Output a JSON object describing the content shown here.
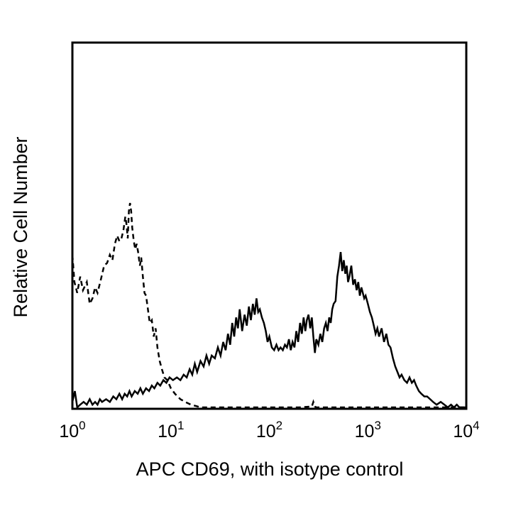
{
  "chart_data": {
    "type": "line",
    "title": "",
    "xlabel": "APC CD69, with isotype control",
    "ylabel": "Relative Cell Number",
    "x_scale": "log",
    "xlim": [
      1,
      10000
    ],
    "ylim": [
      0,
      100
    ],
    "grid": false,
    "legend": "none",
    "x_ticks": [
      {
        "value": 1,
        "base": "10",
        "exp": "0"
      },
      {
        "value": 10,
        "base": "10",
        "exp": "1"
      },
      {
        "value": 100,
        "base": "10",
        "exp": "2"
      },
      {
        "value": 1000,
        "base": "10",
        "exp": "3"
      },
      {
        "value": 10000,
        "base": "10",
        "exp": "4"
      }
    ],
    "series": [
      {
        "style": "dashed",
        "color": "#000000",
        "points": [
          [
            1.0,
            56
          ],
          [
            1.05,
            46
          ],
          [
            1.12,
            42
          ],
          [
            1.2,
            48
          ],
          [
            1.28,
            43
          ],
          [
            1.4,
            46
          ],
          [
            1.5,
            38
          ],
          [
            1.6,
            40
          ],
          [
            1.7,
            44
          ],
          [
            1.8,
            42
          ],
          [
            1.95,
            47
          ],
          [
            2.1,
            52
          ],
          [
            2.25,
            53
          ],
          [
            2.4,
            56
          ],
          [
            2.55,
            54
          ],
          [
            2.7,
            60
          ],
          [
            2.85,
            63
          ],
          [
            3.0,
            61
          ],
          [
            3.15,
            62
          ],
          [
            3.3,
            65
          ],
          [
            3.45,
            70
          ],
          [
            3.55,
            67
          ],
          [
            3.65,
            62
          ],
          [
            3.75,
            72
          ],
          [
            3.85,
            75
          ],
          [
            3.95,
            72
          ],
          [
            4.05,
            66
          ],
          [
            4.2,
            61
          ],
          [
            4.35,
            58
          ],
          [
            4.5,
            60
          ],
          [
            4.65,
            57
          ],
          [
            4.85,
            52
          ],
          [
            5.0,
            55
          ],
          [
            5.2,
            48
          ],
          [
            5.4,
            42
          ],
          [
            5.6,
            41
          ],
          [
            5.8,
            37
          ],
          [
            6.1,
            31
          ],
          [
            6.4,
            32
          ],
          [
            6.7,
            26
          ],
          [
            7.0,
            29
          ],
          [
            7.3,
            22
          ],
          [
            7.7,
            17
          ],
          [
            8.1,
            14
          ],
          [
            8.6,
            11
          ],
          [
            9.2,
            10
          ],
          [
            10.0,
            7
          ],
          [
            11.0,
            5
          ],
          [
            12.5,
            3
          ],
          [
            14.0,
            2
          ],
          [
            16.0,
            1
          ],
          [
            18.0,
            0.5
          ],
          [
            20.0,
            0
          ],
          [
            40.0,
            0
          ],
          [
            80.0,
            0
          ],
          [
            200,
            0
          ],
          [
            270,
            0.3
          ],
          [
            280,
            2
          ],
          [
            290,
            0.3
          ],
          [
            300,
            0
          ],
          [
            1000,
            0
          ],
          [
            3000,
            0
          ],
          [
            10000,
            0
          ]
        ]
      },
      {
        "style": "solid",
        "color": "#000000",
        "points": [
          [
            1.0,
            2
          ],
          [
            1.06,
            6
          ],
          [
            1.12,
            0
          ],
          [
            1.2,
            1
          ],
          [
            1.3,
            2
          ],
          [
            1.4,
            1
          ],
          [
            1.5,
            3
          ],
          [
            1.6,
            1
          ],
          [
            1.7,
            2
          ],
          [
            1.8,
            1
          ],
          [
            1.9,
            3
          ],
          [
            2.0,
            2
          ],
          [
            2.2,
            3
          ],
          [
            2.4,
            2
          ],
          [
            2.6,
            4
          ],
          [
            2.8,
            3
          ],
          [
            3.0,
            5
          ],
          [
            3.2,
            3
          ],
          [
            3.4,
            5
          ],
          [
            3.6,
            4
          ],
          [
            3.8,
            6
          ],
          [
            4.0,
            4
          ],
          [
            4.3,
            6
          ],
          [
            4.6,
            5
          ],
          [
            4.9,
            7
          ],
          [
            5.2,
            5
          ],
          [
            5.6,
            7
          ],
          [
            6.0,
            6
          ],
          [
            6.4,
            8
          ],
          [
            6.8,
            7
          ],
          [
            7.3,
            9
          ],
          [
            7.8,
            8
          ],
          [
            8.4,
            10
          ],
          [
            9.0,
            9
          ],
          [
            9.7,
            11
          ],
          [
            10.5,
            10
          ],
          [
            11.5,
            11
          ],
          [
            12.5,
            10
          ],
          [
            13.5,
            12
          ],
          [
            14.5,
            11
          ],
          [
            15.5,
            14
          ],
          [
            16.5,
            12
          ],
          [
            17.5,
            16
          ],
          [
            18.5,
            13
          ],
          [
            20.0,
            17
          ],
          [
            21.5,
            15
          ],
          [
            23.0,
            19
          ],
          [
            24.5,
            16
          ],
          [
            26.0,
            19
          ],
          [
            28.0,
            18
          ],
          [
            30.0,
            22
          ],
          [
            32.0,
            19
          ],
          [
            34.0,
            24
          ],
          [
            36.0,
            21
          ],
          [
            38.0,
            27
          ],
          [
            40.0,
            23
          ],
          [
            42.0,
            31
          ],
          [
            44.0,
            26
          ],
          [
            46.0,
            33
          ],
          [
            48.0,
            29
          ],
          [
            50.0,
            36
          ],
          [
            53.0,
            28
          ],
          [
            56.0,
            34
          ],
          [
            59.0,
            30
          ],
          [
            62.0,
            37
          ],
          [
            65.0,
            32
          ],
          [
            68.0,
            38
          ],
          [
            71.0,
            34
          ],
          [
            74.0,
            40
          ],
          [
            77.0,
            35
          ],
          [
            80.0,
            36
          ],
          [
            84.0,
            33
          ],
          [
            88.0,
            31
          ],
          [
            92.0,
            28
          ],
          [
            96.0,
            24
          ],
          [
            100,
            26
          ],
          [
            106,
            22
          ],
          [
            112,
            21
          ],
          [
            118,
            23
          ],
          [
            124,
            21
          ],
          [
            130,
            22
          ],
          [
            137,
            21
          ],
          [
            144,
            23
          ],
          [
            151,
            22
          ],
          [
            158,
            25
          ],
          [
            165,
            21
          ],
          [
            172,
            24
          ],
          [
            180,
            22
          ],
          [
            188,
            28
          ],
          [
            196,
            24
          ],
          [
            205,
            31
          ],
          [
            214,
            27
          ],
          [
            223,
            33
          ],
          [
            232,
            28
          ],
          [
            240,
            32
          ],
          [
            250,
            34
          ],
          [
            260,
            29
          ],
          [
            270,
            33
          ],
          [
            280,
            26
          ],
          [
            290,
            20
          ],
          [
            300,
            25
          ],
          [
            315,
            23
          ],
          [
            330,
            27
          ],
          [
            345,
            24
          ],
          [
            360,
            29
          ],
          [
            375,
            31
          ],
          [
            390,
            28
          ],
          [
            405,
            33
          ],
          [
            420,
            31
          ],
          [
            435,
            36
          ],
          [
            450,
            38
          ],
          [
            470,
            39
          ],
          [
            490,
            48
          ],
          [
            510,
            52
          ],
          [
            530,
            57
          ],
          [
            550,
            50
          ],
          [
            570,
            54
          ],
          [
            590,
            49
          ],
          [
            610,
            52
          ],
          [
            630,
            46
          ],
          [
            650,
            48
          ],
          [
            680,
            52
          ],
          [
            710,
            45
          ],
          [
            740,
            47
          ],
          [
            770,
            43
          ],
          [
            800,
            46
          ],
          [
            830,
            41
          ],
          [
            860,
            44
          ],
          [
            890,
            42
          ],
          [
            920,
            40
          ],
          [
            950,
            41
          ],
          [
            1000,
            38
          ],
          [
            1050,
            35
          ],
          [
            1100,
            33
          ],
          [
            1150,
            30
          ],
          [
            1200,
            27
          ],
          [
            1250,
            29
          ],
          [
            1300,
            26
          ],
          [
            1380,
            29
          ],
          [
            1460,
            24
          ],
          [
            1540,
            27
          ],
          [
            1620,
            23
          ],
          [
            1700,
            22
          ],
          [
            1800,
            18
          ],
          [
            1900,
            15
          ],
          [
            2000,
            13
          ],
          [
            2100,
            11
          ],
          [
            2200,
            12
          ],
          [
            2350,
            10
          ],
          [
            2500,
            9
          ],
          [
            2650,
            11
          ],
          [
            2800,
            9
          ],
          [
            2950,
            10
          ],
          [
            3100,
            8
          ],
          [
            3300,
            6
          ],
          [
            3500,
            5
          ],
          [
            3750,
            4
          ],
          [
            4000,
            4
          ],
          [
            4300,
            3
          ],
          [
            4600,
            2
          ],
          [
            5000,
            1
          ],
          [
            5500,
            2
          ],
          [
            6000,
            1
          ],
          [
            6500,
            0
          ],
          [
            7000,
            1
          ],
          [
            7500,
            0
          ],
          [
            8000,
            1
          ],
          [
            8500,
            0
          ],
          [
            10000,
            0
          ]
        ]
      }
    ]
  }
}
